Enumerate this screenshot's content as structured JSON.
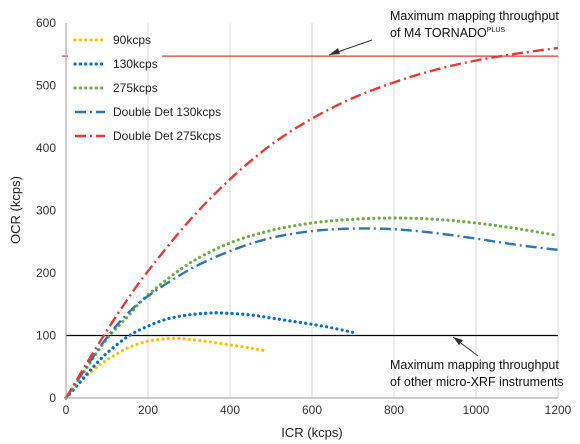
{
  "chart_data": {
    "type": "line",
    "xlabel": "ICR (kcps)",
    "ylabel": "OCR  (kcps)",
    "xlim": [
      0,
      1200
    ],
    "ylim": [
      0,
      600
    ],
    "xticks": [
      "0",
      "200",
      "400",
      "600",
      "800",
      "1000",
      "1200"
    ],
    "yticks": [
      "0",
      "100",
      "200",
      "300",
      "400",
      "500",
      "600"
    ],
    "grid": "vertical",
    "legend_position": "top-left",
    "series": [
      {
        "name": "90kcps",
        "style": "dotted",
        "color": "#FFC000",
        "x": [
          0,
          20,
          50,
          80,
          110,
          150,
          200,
          250,
          280,
          300,
          350,
          400,
          450,
          490
        ],
        "y": [
          0,
          15,
          35,
          52,
          65,
          80,
          91,
          95,
          95,
          94,
          90,
          85,
          80,
          75
        ]
      },
      {
        "name": "130kcps",
        "style": "dotted",
        "color": "#0070C0",
        "x": [
          0,
          30,
          60,
          100,
          150,
          200,
          250,
          300,
          350,
          380,
          450,
          500,
          550,
          600,
          650,
          700
        ],
        "y": [
          0,
          22,
          45,
          72,
          98,
          115,
          127,
          133,
          136,
          136,
          133,
          128,
          123,
          118,
          112,
          105
        ]
      },
      {
        "name": "275kcps",
        "style": "dotted",
        "color": "#70AD47",
        "x": [
          0,
          50,
          100,
          150,
          200,
          300,
          400,
          500,
          600,
          700,
          800,
          900,
          1000,
          1100,
          1200
        ],
        "y": [
          0,
          48,
          95,
          130,
          165,
          215,
          248,
          268,
          280,
          286,
          288,
          286,
          280,
          271,
          260
        ]
      },
      {
        "name": "Double Det 130kcps",
        "style": "dashdot",
        "color": "#2E75B6",
        "x": [
          0,
          50,
          100,
          150,
          200,
          300,
          400,
          500,
          600,
          700,
          800,
          900,
          1000,
          1100,
          1200
        ],
        "y": [
          0,
          50,
          97,
          135,
          163,
          205,
          235,
          256,
          267,
          271,
          270,
          264,
          255,
          245,
          237
        ]
      },
      {
        "name": "Double Det 275kcps",
        "style": "dashdot",
        "color": "#E53935",
        "x": [
          0,
          50,
          100,
          150,
          200,
          300,
          400,
          500,
          600,
          700,
          800,
          900,
          1000,
          1100,
          1200
        ],
        "y": [
          0,
          55,
          108,
          158,
          203,
          283,
          350,
          405,
          447,
          480,
          505,
          525,
          540,
          551,
          560
        ]
      }
    ],
    "reference_lines": [
      {
        "y": 547,
        "color": "#E53935",
        "label_line1": "Maximum mapping throughput",
        "label_line2_main": "of M4 TORNADO",
        "label_line2_sup": "PLUS"
      },
      {
        "y": 100,
        "color": "#000000",
        "label_line1": "Maximum mapping throughput",
        "label_line2_main": "of other micro-XRF instruments",
        "label_line2_sup": ""
      }
    ]
  }
}
